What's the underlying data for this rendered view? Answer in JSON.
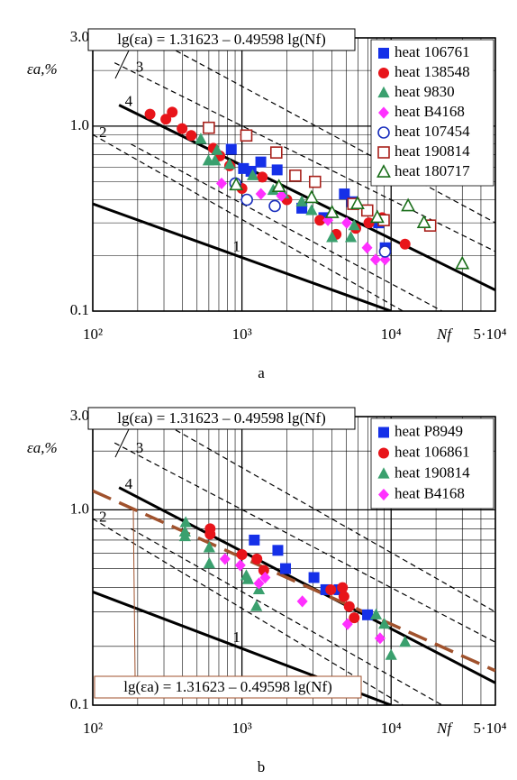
{
  "chart_data": [
    {
      "type": "scatter",
      "panel_label": "a",
      "ylabel": "εa,%",
      "xlabel": "Nf",
      "xscale": "log",
      "yscale": "log",
      "xlim": [
        100,
        50000
      ],
      "ylim": [
        0.1,
        3
      ],
      "xticks": [
        {
          "value": 100,
          "label": "10²"
        },
        {
          "value": 1000,
          "label": "10³"
        },
        {
          "value": 10000,
          "label": "10⁴"
        },
        {
          "value": 50000,
          "label": "5·10⁴"
        }
      ],
      "yticks": [
        0.1,
        {
          "value": 1,
          "label": "1.0"
        },
        {
          "value": 3,
          "label": "3.0"
        }
      ],
      "xminor": [
        200,
        300,
        400,
        500,
        600,
        700,
        800,
        900,
        2000,
        3000,
        4000,
        5000,
        6000,
        7000,
        8000,
        9000,
        20000,
        30000,
        40000
      ],
      "yminor": [
        0.2,
        0.3,
        0.4,
        0.5,
        0.6,
        0.7,
        0.8,
        0.9,
        2
      ],
      "grid": true,
      "legend": "upper right",
      "annotations": [
        {
          "text": "lg(εa) = 1.31623 – 0.49598 lg(Nf)",
          "color": "#000000"
        }
      ],
      "lines": [
        {
          "label": "4",
          "style": "solid",
          "color": "#000000",
          "width": 3,
          "x": [
            150,
            50000
          ],
          "values": [
            1.3,
            0.13
          ]
        },
        {
          "label": "1",
          "style": "solid",
          "color": "#000000",
          "width": 3,
          "x": [
            100,
            10000
          ],
          "values": [
            0.38,
            0.1
          ]
        },
        {
          "style": "dashed",
          "color": "#000000",
          "width": 1.2,
          "x": [
            250,
            50000
          ],
          "values": [
            3.0,
            0.3
          ]
        },
        {
          "label": "3",
          "style": "dashed",
          "color": "#000000",
          "width": 1.2,
          "x": [
            140,
            50000
          ],
          "values": [
            2.2,
            0.21
          ]
        },
        {
          "label": "2",
          "style": "dashed",
          "color": "#000000",
          "width": 1.2,
          "x": [
            100,
            12000
          ],
          "values": [
            0.9,
            0.1
          ]
        },
        {
          "style": "dashed",
          "color": "#000000",
          "width": 1.2,
          "x": [
            180,
            22000
          ],
          "values": [
            0.8,
            0.1
          ]
        }
      ],
      "series": [
        {
          "name": "heat 106761",
          "color": "#1530e8",
          "marker": "square",
          "filled": true,
          "x": [
            848,
            1338,
            1025,
            1150,
            1722,
            2520,
            3540,
            4860,
            5450,
            8240,
            9120
          ],
          "values": [
            0.75,
            0.64,
            0.59,
            0.57,
            0.58,
            0.36,
            0.32,
            0.43,
            0.39,
            0.3,
            0.22
          ]
        },
        {
          "name": "heat 138548",
          "color": "#e8141a",
          "marker": "circle",
          "filled": true,
          "x": [
            242,
            309,
            341,
            397,
            457,
            643,
            711,
            827,
            1000,
            1370,
            2000,
            3330,
            4280,
            5800,
            7100,
            8700,
            12400
          ],
          "values": [
            1.16,
            1.09,
            1.19,
            0.97,
            0.89,
            0.76,
            0.69,
            0.61,
            0.46,
            0.53,
            0.4,
            0.31,
            0.26,
            0.28,
            0.3,
            0.32,
            0.23
          ]
        },
        {
          "name": "heat 9830",
          "color": "#3aa06e",
          "marker": "triangle",
          "filled": true,
          "x": [
            530,
            596,
            660,
            680,
            827,
            1180,
            1620,
            1900,
            2520,
            2930,
            4020,
            5370,
            5650
          ],
          "values": [
            0.85,
            0.65,
            0.65,
            0.74,
            0.62,
            0.54,
            0.45,
            0.43,
            0.39,
            0.35,
            0.25,
            0.25,
            0.29
          ]
        },
        {
          "name": "heat B4168",
          "color": "#ff30ff",
          "marker": "diamond",
          "filled": true,
          "x": [
            730,
            1340,
            1840,
            3770,
            5040,
            6900,
            7860,
            9120
          ],
          "values": [
            0.49,
            0.43,
            0.42,
            0.31,
            0.3,
            0.22,
            0.19,
            0.19
          ]
        },
        {
          "name": "heat 107454",
          "color": "#1a2fbd",
          "marker": "circle",
          "filled": false,
          "x": [
            904,
            1080,
            1660,
            9100
          ],
          "values": [
            0.49,
            0.4,
            0.37,
            0.21
          ]
        },
        {
          "name": "heat 190814",
          "color": "#a8201a",
          "marker": "square",
          "filled": false,
          "x": [
            600,
            1070,
            1700,
            2280,
            3090,
            5580,
            6920,
            8920,
            18300
          ],
          "values": [
            0.98,
            0.89,
            0.72,
            0.54,
            0.5,
            0.38,
            0.35,
            0.31,
            0.29
          ]
        },
        {
          "name": "heat 180717",
          "color": "#1a6e1a",
          "marker": "triangle",
          "filled": false,
          "x": [
            915,
            1770,
            2930,
            4020,
            5950,
            8080,
            13000,
            16600,
            30000
          ],
          "values": [
            0.48,
            0.47,
            0.41,
            0.34,
            0.38,
            0.32,
            0.37,
            0.3,
            0.18
          ]
        }
      ]
    },
    {
      "type": "scatter",
      "panel_label": "b",
      "ylabel": "εa,%",
      "xlabel": "Nf",
      "xscale": "log",
      "yscale": "log",
      "xlim": [
        100,
        50000
      ],
      "ylim": [
        0.1,
        3
      ],
      "xticks": [
        {
          "value": 100,
          "label": "10²"
        },
        {
          "value": 1000,
          "label": "10³"
        },
        {
          "value": 10000,
          "label": "10⁴"
        },
        {
          "value": 50000,
          "label": "5·10⁴"
        }
      ],
      "yticks": [
        0.1,
        {
          "value": 1,
          "label": "1.0"
        },
        {
          "value": 3,
          "label": "3.0"
        }
      ],
      "xminor": [
        200,
        300,
        400,
        500,
        600,
        700,
        800,
        900,
        2000,
        3000,
        4000,
        5000,
        6000,
        7000,
        8000,
        9000,
        20000,
        30000,
        40000
      ],
      "yminor": [
        0.2,
        0.3,
        0.4,
        0.5,
        0.6,
        0.7,
        0.8,
        0.9,
        2
      ],
      "grid": true,
      "legend": "upper right",
      "annotations": [
        {
          "text": "lg(εa) = 1.31623 – 0.49598 lg(Nf)",
          "color": "#000000"
        },
        {
          "text": "lg(εa) = 1.31623 – 0.49598 lg(Nf)",
          "color": "#a0522d"
        }
      ],
      "lines": [
        {
          "label": "4",
          "style": "solid",
          "color": "#000000",
          "width": 3,
          "x": [
            150,
            50000
          ],
          "values": [
            1.3,
            0.13
          ]
        },
        {
          "label": "1",
          "style": "solid",
          "color": "#000000",
          "width": 3,
          "x": [
            100,
            10000
          ],
          "values": [
            0.38,
            0.1
          ]
        },
        {
          "style": "dashed",
          "color": "#000000",
          "width": 1.2,
          "x": [
            250,
            50000
          ],
          "values": [
            3.0,
            0.3
          ]
        },
        {
          "label": "3",
          "style": "dashed",
          "color": "#000000",
          "width": 1.2,
          "x": [
            140,
            50000
          ],
          "values": [
            2.2,
            0.21
          ]
        },
        {
          "label": "2",
          "style": "dashed",
          "color": "#000000",
          "width": 1.2,
          "x": [
            100,
            12000
          ],
          "values": [
            0.9,
            0.1
          ]
        },
        {
          "style": "dashed",
          "color": "#000000",
          "width": 1.2,
          "x": [
            180,
            22000
          ],
          "values": [
            0.8,
            0.1
          ]
        },
        {
          "style": "longdash",
          "color": "#a0522d",
          "width": 3.5,
          "x": [
            100,
            50000
          ],
          "values": [
            1.25,
            0.15
          ]
        }
      ],
      "series": [
        {
          "name": "heat P8949",
          "color": "#1530e8",
          "marker": "square",
          "filled": true,
          "x": [
            1210,
            1740,
            1960,
            3040,
            3650,
            4480,
            6950
          ],
          "values": [
            0.7,
            0.62,
            0.5,
            0.45,
            0.39,
            0.39,
            0.29
          ]
        },
        {
          "name": "heat 106861",
          "color": "#e8141a",
          "marker": "circle",
          "filled": true,
          "x": [
            612,
            612,
            1000,
            1260,
            1400,
            3940,
            4720,
            4830,
            5240,
            5660
          ],
          "values": [
            0.8,
            0.75,
            0.59,
            0.56,
            0.49,
            0.39,
            0.4,
            0.36,
            0.32,
            0.28
          ]
        },
        {
          "name": "heat 190814",
          "color": "#3aa06e",
          "marker": "triangle",
          "filled": true,
          "x": [
            415,
            415,
            420,
            604,
            604,
            1070,
            1100,
            1250,
            1300,
            7930,
            9000,
            10000,
            12400
          ],
          "values": [
            0.73,
            0.77,
            0.86,
            0.64,
            0.53,
            0.46,
            0.44,
            0.32,
            0.39,
            0.29,
            0.26,
            0.18,
            0.21
          ]
        },
        {
          "name": "heat B4168",
          "color": "#ff30ff",
          "marker": "diamond",
          "filled": true,
          "x": [
            770,
            975,
            1300,
            1430,
            2540,
            5100,
            8430
          ],
          "values": [
            0.56,
            0.52,
            0.42,
            0.45,
            0.34,
            0.26,
            0.22
          ]
        }
      ]
    }
  ]
}
